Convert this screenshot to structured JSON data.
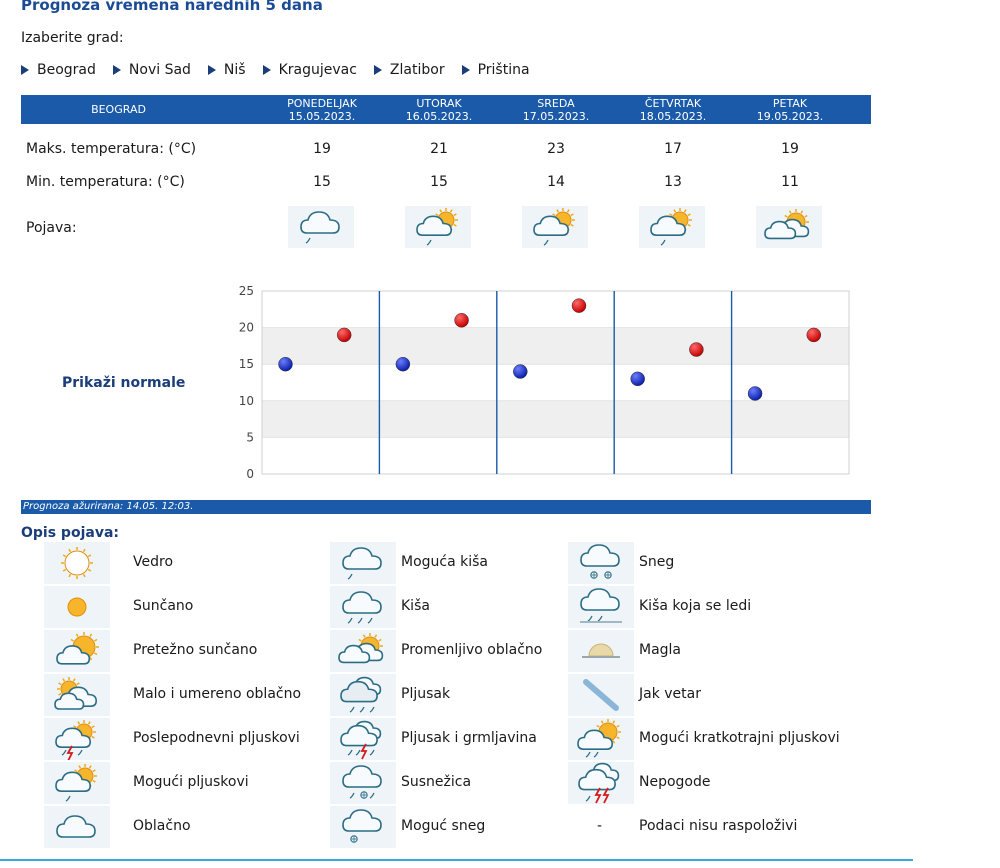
{
  "title": "Prognoza vremena narednih 5 dana",
  "city_prompt": "Izaberite grad:",
  "cities": [
    "Beograd",
    "Novi Sad",
    "Niš",
    "Kragujevac",
    "Zlatibor",
    "Priština"
  ],
  "forecast": {
    "city": "BEOGRAD",
    "days": [
      {
        "name": "PONEDELJAK",
        "date": "15.05.2023.",
        "max": "19",
        "min": "15",
        "icon": "possible-rain-icon"
      },
      {
        "name": "UTORAK",
        "date": "16.05.2023.",
        "max": "21",
        "min": "15",
        "icon": "possible-showers-icon"
      },
      {
        "name": "SREDA",
        "date": "17.05.2023.",
        "max": "23",
        "min": "14",
        "icon": "possible-showers-icon"
      },
      {
        "name": "ČETVRTAK",
        "date": "18.05.2023.",
        "max": "17",
        "min": "13",
        "icon": "possible-showers-icon"
      },
      {
        "name": "PETAK",
        "date": "19.05.2023.",
        "max": "19",
        "min": "11",
        "icon": "variable-cloudy-icon"
      }
    ],
    "labels": {
      "max": "Maks. temperatura: (°C)",
      "min": "Min. temperatura: (°C)",
      "phenomenon": "Pojava:"
    }
  },
  "show_normals": "Prikaži normale",
  "chart_data": {
    "type": "scatter",
    "categories": [
      "PONEDELJAK",
      "UTORAK",
      "SREDA",
      "ČETVRTAK",
      "PETAK"
    ],
    "yticks": [
      "0",
      "5",
      "10",
      "15",
      "20",
      "25"
    ],
    "ylim": [
      0,
      25
    ],
    "grid": true,
    "series": [
      {
        "name": "",
        "color": "#0a1fa8",
        "values": [
          15,
          15,
          14,
          13,
          11
        ]
      },
      {
        "name": "",
        "color": "#c40000",
        "values": [
          19,
          21,
          23,
          17,
          19
        ]
      }
    ]
  },
  "updated": "Prognoza ažurirana:  14.05. 12:03.",
  "legend_title": "Opis pojava:",
  "legend": [
    [
      {
        "icon": "clear-sky-icon",
        "label": "Vedro"
      },
      {
        "icon": "sunny-icon",
        "label": "Sunčano"
      },
      {
        "icon": "mostly-sunny-icon",
        "label": "Pretežno sunčano"
      },
      {
        "icon": "partly-cloudy-icon",
        "label": "Malo i umereno oblačno"
      },
      {
        "icon": "afternoon-showers-icon",
        "label": "Poslepodnevni pljuskovi"
      },
      {
        "icon": "possible-showers-icon",
        "label": "Mogući pljuskovi"
      },
      {
        "icon": "cloudy-icon",
        "label": "Oblačno"
      }
    ],
    [
      {
        "icon": "possible-rain-icon",
        "label": "Moguća kiša"
      },
      {
        "icon": "rain-icon",
        "label": "Kiša"
      },
      {
        "icon": "variable-cloudy-icon",
        "label": "Promenljivo oblačno"
      },
      {
        "icon": "shower-icon",
        "label": "Pljusak"
      },
      {
        "icon": "thunderstorm-icon",
        "label": "Pljusak i grmljavina"
      },
      {
        "icon": "sleet-icon",
        "label": "Susnežica"
      },
      {
        "icon": "possible-snow-icon",
        "label": "Moguć sneg"
      }
    ],
    [
      {
        "icon": "snow-icon",
        "label": "Sneg"
      },
      {
        "icon": "freezing-rain-icon",
        "label": "Kiša koja se ledi"
      },
      {
        "icon": "fog-icon",
        "label": "Magla"
      },
      {
        "icon": "strong-wind-icon",
        "label": "Jak vetar"
      },
      {
        "icon": "brief-showers-icon",
        "label": "Mogući kratkotrajni pljuskovi"
      },
      {
        "icon": "severe-weather-icon",
        "label": "Nepogode"
      },
      {
        "icon": "",
        "label": "Podaci nisu raspoloživi",
        "symbol": "-"
      }
    ]
  ],
  "colors": {
    "header_bg": "#1a5aa9",
    "title": "#1b4b96",
    "link_triangle": "#1b3e7a",
    "icon_bg": "#eef4f8"
  }
}
